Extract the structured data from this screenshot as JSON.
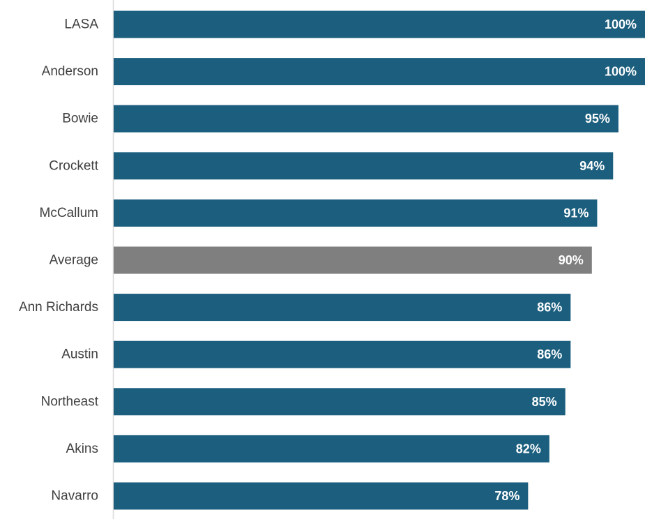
{
  "chart_data": {
    "type": "bar",
    "orientation": "horizontal",
    "title": "",
    "xlabel": "",
    "ylabel": "",
    "xlim": [
      0,
      100
    ],
    "grid": false,
    "legend": "none",
    "categories": [
      "LASA",
      "Anderson",
      "Bowie",
      "Crockett",
      "McCallum",
      "Average",
      "Ann Richards",
      "Austin",
      "Northeast",
      "Akins",
      "Navarro"
    ],
    "values": [
      100,
      100,
      95,
      94,
      91,
      90,
      86,
      86,
      85,
      82,
      78
    ],
    "value_labels": [
      "100%",
      "100%",
      "95%",
      "94%",
      "91%",
      "90%",
      "86%",
      "86%",
      "85%",
      "82%",
      "78%"
    ],
    "highlight_category": "Average",
    "colors": {
      "bar": "#1b5e7e",
      "highlight": "#7f7f7f",
      "axis": "#d9d9d9",
      "label": "#404040",
      "value_text": "#ffffff"
    }
  }
}
